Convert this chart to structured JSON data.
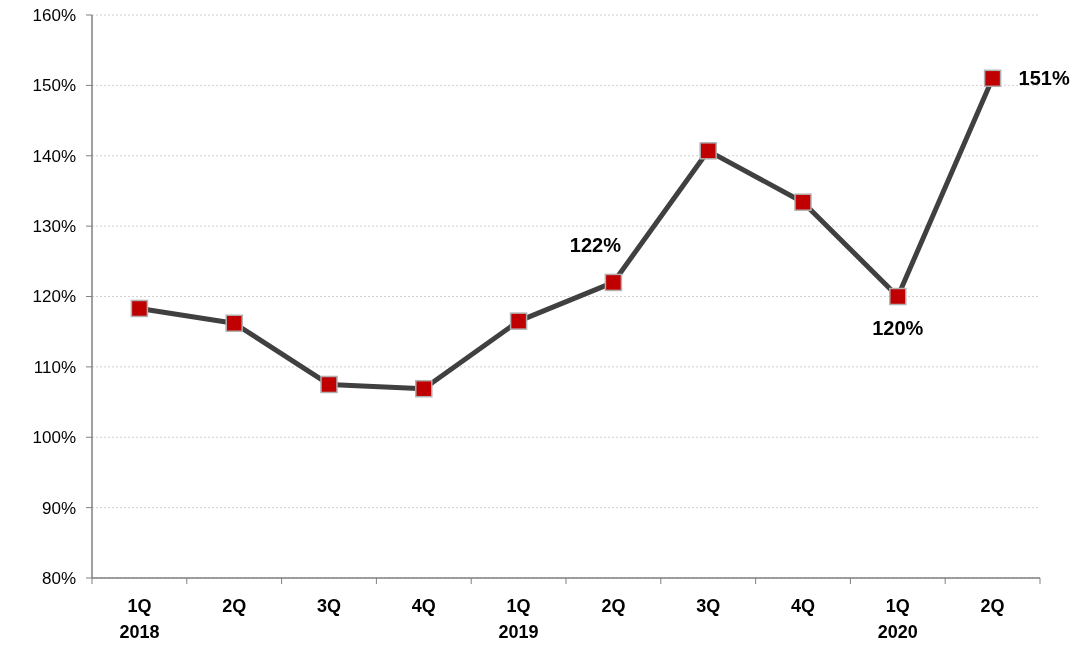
{
  "chart_data": {
    "type": "line",
    "categories": [
      "1Q\n2018",
      "2Q",
      "3Q",
      "4Q",
      "1Q\n2019",
      "2Q",
      "3Q",
      "4Q",
      "1Q\n2020",
      "2Q"
    ],
    "series": [
      {
        "color": "#404040",
        "values": [
          118.3,
          116.2,
          107.5,
          106.9,
          116.5,
          122,
          140.7,
          133.4,
          120,
          151
        ],
        "value_labels": [
          null,
          null,
          null,
          null,
          null,
          "122%",
          null,
          null,
          "120%",
          "151%"
        ]
      }
    ],
    "ylim": [
      80,
      160
    ],
    "yticks": [
      {
        "value": 80,
        "label": "80%"
      },
      {
        "value": 90,
        "label": "90%"
      },
      {
        "value": 100,
        "label": "100%"
      },
      {
        "value": 110,
        "label": "110%"
      },
      {
        "value": 120,
        "label": "120%"
      },
      {
        "value": 130,
        "label": "130%"
      },
      {
        "value": 140,
        "label": "140%"
      },
      {
        "value": 150,
        "label": "150%"
      },
      {
        "value": 160,
        "label": "160%"
      }
    ],
    "grid": "y",
    "marker": "square",
    "line_style": "solid"
  }
}
